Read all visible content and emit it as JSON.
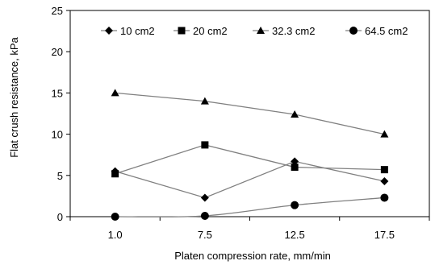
{
  "chart_data": {
    "type": "line",
    "title": "",
    "xlabel": "Platen compression rate, mm/min",
    "ylabel": "Flat crush resistance, kPa",
    "categories": [
      "1.0",
      "7.5",
      "12.5",
      "17.5"
    ],
    "ylim": [
      0,
      25
    ],
    "yticks": [
      0,
      5,
      10,
      15,
      20,
      25
    ],
    "grid": false,
    "legend_position": "top",
    "series": [
      {
        "name": "10 cm2",
        "marker": "diamond",
        "values": [
          5.5,
          2.3,
          6.7,
          4.3
        ]
      },
      {
        "name": "20 cm2",
        "marker": "square",
        "values": [
          5.2,
          8.7,
          6.0,
          5.7
        ]
      },
      {
        "name": "32.3 cm2",
        "marker": "triangle",
        "values": [
          15.0,
          14.0,
          12.4,
          10.0
        ]
      },
      {
        "name": "64.5 cm2",
        "marker": "circle",
        "values": [
          0.0,
          0.1,
          1.4,
          2.3
        ]
      }
    ],
    "colors": {
      "line": "#808080",
      "marker": "#000000",
      "axis": "#000000"
    }
  }
}
